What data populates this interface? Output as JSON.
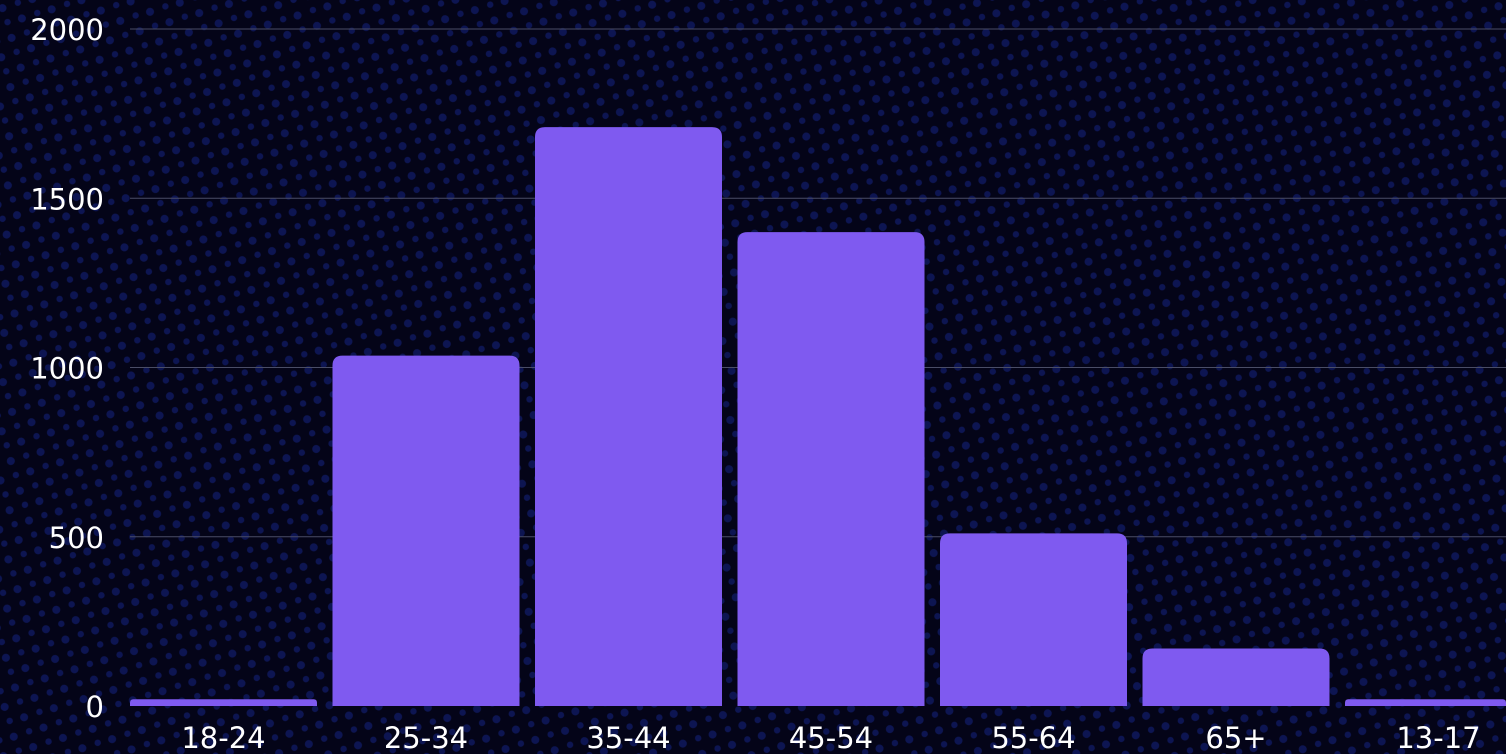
{
  "colors": {
    "background": "#040418",
    "dot_pattern": "#0d1552",
    "bar": "#7f5af0",
    "gridline": "#4a4d66",
    "text": "#ffffff"
  },
  "chart_data": {
    "type": "bar",
    "categories": [
      "18-24",
      "25-34",
      "35-44",
      "45-54",
      "55-64",
      "65+",
      "13-17"
    ],
    "values": [
      20,
      1035,
      1710,
      1400,
      510,
      170,
      20
    ],
    "ylim": [
      0,
      2000
    ],
    "yticks": [
      0,
      500,
      1000,
      1500,
      2000
    ],
    "grid": true,
    "legend": "none"
  }
}
